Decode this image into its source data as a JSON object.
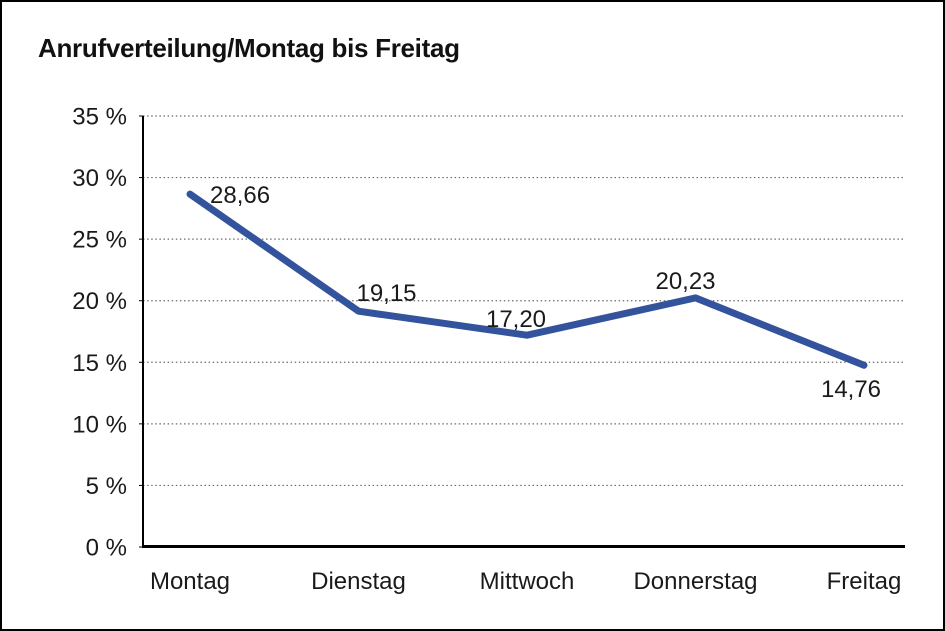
{
  "chart_data": {
    "type": "line",
    "title": "Anrufverteilung/Montag bis Freitag",
    "categories": [
      "Montag",
      "Dienstag",
      "Mittwoch",
      "Donnerstag",
      "Freitag"
    ],
    "values": [
      28.66,
      19.15,
      17.2,
      20.23,
      14.76
    ],
    "point_labels": [
      "28,66",
      "19,15",
      "17,20",
      "20,23",
      "14,76"
    ],
    "xlabel": "",
    "ylabel": "",
    "ylim": [
      0,
      35
    ],
    "ytick_step": 5,
    "ytick_labels": [
      "0 %",
      "5 %",
      "10 %",
      "15 %",
      "20 %",
      "25 %",
      "30 %",
      "35 %"
    ],
    "grid": "horizontal-dotted",
    "legend": "none",
    "line_color": "#33539D",
    "axis_color": "#000000",
    "grid_color": "#6b6b6b",
    "text_color": "#1a1a1a",
    "background_color": "#ffffff",
    "frame_border_color": "#000000"
  }
}
